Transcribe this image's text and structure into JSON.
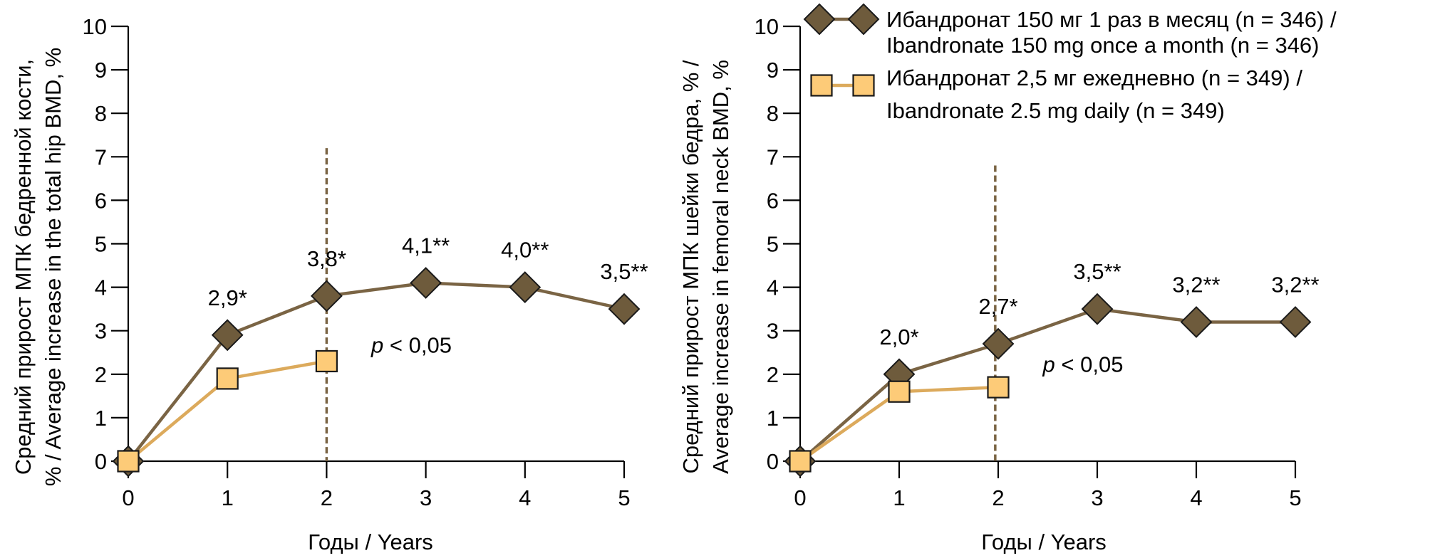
{
  "colors": {
    "monthly": "#6e5b3c",
    "monthly_line": "#7a6444",
    "daily": "#fdcb78",
    "daily_line": "#dcaa5c",
    "reference_line": "#7a6444",
    "axis": "#000000"
  },
  "legend": {
    "placement": "top-right",
    "items": [
      {
        "series": "monthly",
        "line1": "Ибандронат 150 мг 1 раз в месяц (n = 346) /",
        "line2": "Ibandronate 150 mg once a month (n = 346)",
        "marker": "diamond"
      },
      {
        "series": "daily",
        "line1": "Ибандронат 2,5 мг ежедневно (n = 349) /",
        "line2": "Ibandronate 2.5 mg daily (n = 349)",
        "marker": "square"
      }
    ]
  },
  "chart_data": [
    {
      "type": "line",
      "title": "",
      "xlabel": "Годы / Years",
      "ylabel_line1": "Средний прирост МПК бедренной кости,",
      "ylabel_line2": "% / Average increase in the total hip BMD, %",
      "x": [
        0,
        1,
        2,
        3,
        4,
        5
      ],
      "xticks": [
        "0",
        "1",
        "2",
        "3",
        "4",
        "5"
      ],
      "yticks": [
        "0",
        "1",
        "2",
        "3",
        "4",
        "5",
        "6",
        "7",
        "8",
        "9",
        "10"
      ],
      "xlim": [
        0,
        5
      ],
      "ylim": [
        0,
        10
      ],
      "grid": false,
      "reference_line_x": 2,
      "reference_line_top": 7.2,
      "annotation": {
        "italic": "p",
        "text": " < 0,05",
        "x": 2.45,
        "y": 2.5
      },
      "series": [
        {
          "name": "Ибандронат 150 мг 1 раз в месяц / Ibandronate 150 mg once a month",
          "key": "monthly",
          "x": [
            0,
            1,
            2,
            3,
            4,
            5
          ],
          "values": [
            0,
            2.9,
            3.8,
            4.1,
            4.0,
            3.5
          ],
          "labels": [
            "",
            "2,9*",
            "3,8*",
            "4,1**",
            "4,0**",
            "3,5**"
          ]
        },
        {
          "name": "Ибандронат 2,5 мг ежедневно / Ibandronate 2.5 mg daily",
          "key": "daily",
          "x": [
            0,
            1,
            2
          ],
          "values": [
            0,
            1.9,
            2.3
          ],
          "labels": [
            "",
            "",
            ""
          ]
        }
      ]
    },
    {
      "type": "line",
      "title": "",
      "xlabel": "Годы / Years",
      "ylabel_line1": "Средний прирост МПК шейки бедра, % /",
      "ylabel_line2": "Average increase in femoral neck BMD, %",
      "x": [
        0,
        1,
        2,
        3,
        4,
        5
      ],
      "xticks": [
        "0",
        "1",
        "2",
        "3",
        "4",
        "5"
      ],
      "yticks": [
        "0",
        "1",
        "2",
        "3",
        "4",
        "5",
        "6",
        "7",
        "8",
        "9",
        "10"
      ],
      "xlim": [
        0,
        5
      ],
      "ylim": [
        0,
        10
      ],
      "grid": false,
      "reference_line_x": 1.97,
      "reference_line_top": 6.8,
      "annotation": {
        "italic": "p",
        "text": " < 0,05",
        "x": 2.45,
        "y": 2.05
      },
      "series": [
        {
          "name": "Ибандронат 150 мг 1 раз в месяц / Ibandronate 150 mg once a month",
          "key": "monthly",
          "x": [
            0,
            1,
            2,
            3,
            4,
            5
          ],
          "values": [
            0,
            2.0,
            2.7,
            3.5,
            3.2,
            3.2
          ],
          "labels": [
            "",
            "2,0*",
            "2,7*",
            "3,5**",
            "3,2**",
            "3,2**"
          ]
        },
        {
          "name": "Ибандронат 2,5 мг ежедневно / Ibandronate 2.5 mg daily",
          "key": "daily",
          "x": [
            0,
            1,
            2
          ],
          "values": [
            0,
            1.6,
            1.7
          ],
          "labels": [
            "",
            "",
            ""
          ]
        }
      ]
    }
  ]
}
